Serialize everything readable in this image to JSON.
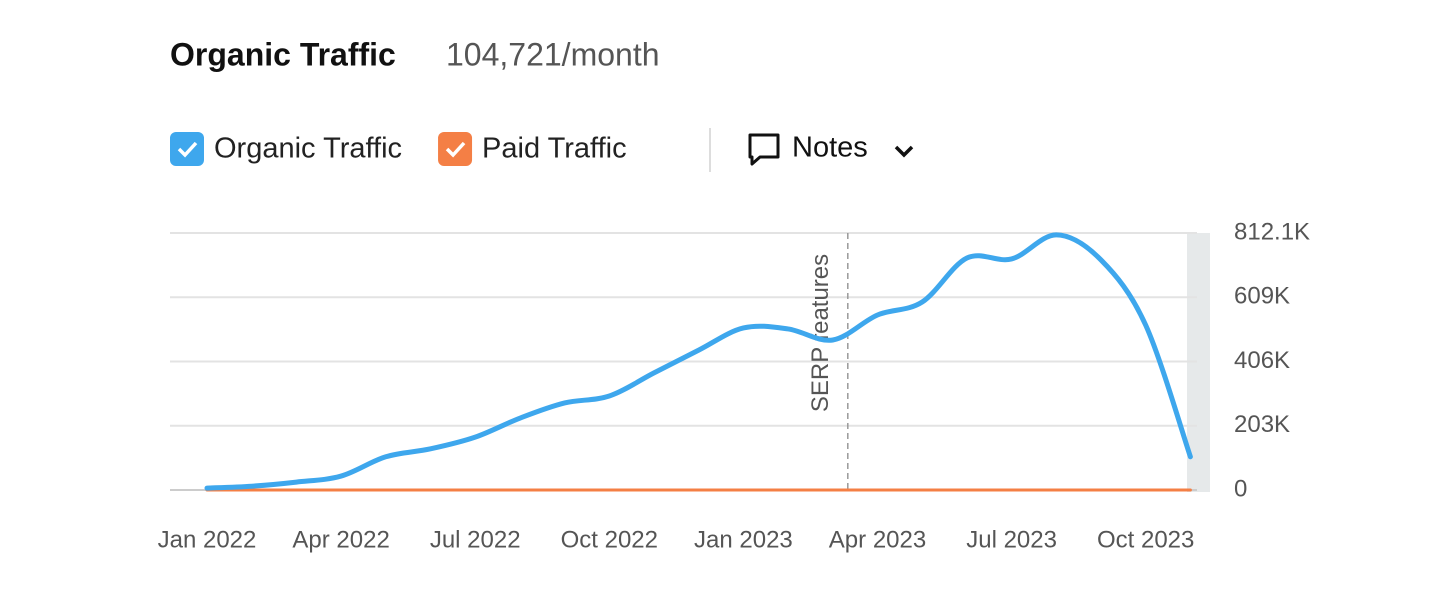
{
  "header": {
    "title": "Organic Traffic",
    "subtitle": "104,721/month"
  },
  "controls": {
    "notes": "Notes"
  },
  "chart_data": {
    "type": "line",
    "x": [
      "Jan 2022",
      "Feb 2022",
      "Mar 2022",
      "Apr 2022",
      "May 2022",
      "Jun 2022",
      "Jul 2022",
      "Aug 2022",
      "Sep 2022",
      "Oct 2022",
      "Nov 2022",
      "Dec 2022",
      "Jan 2023",
      "Feb 2023",
      "Mar 2023",
      "Apr 2023",
      "May 2023",
      "Jun 2023",
      "Jul 2023",
      "Aug 2023",
      "Sep 2023",
      "Oct 2023",
      "Nov 2023"
    ],
    "series": [
      {
        "name": "Organic Traffic",
        "color": "#3ea7ed",
        "values": [
          6,
          12,
          25,
          44,
          105,
          130,
          167,
          227,
          275,
          297,
          370,
          442,
          512,
          509,
          474,
          553,
          594,
          733,
          730,
          806,
          727,
          521,
          105
        ]
      },
      {
        "name": "Paid Traffic",
        "color": "#f47f45",
        "values": [
          0,
          0,
          0,
          0,
          0,
          0,
          0,
          0,
          0,
          0,
          0,
          0,
          0,
          0,
          0,
          0,
          0,
          0,
          0,
          0,
          0,
          0,
          0
        ]
      }
    ],
    "xticks": [
      "Jan 2022",
      "Apr 2022",
      "Jul 2022",
      "Oct 2022",
      "Jan 2023",
      "Apr 2023",
      "Jul 2023",
      "Oct 2023"
    ],
    "ylim": [
      0,
      812.1
    ],
    "yticks": [
      0,
      {
        "value": 203,
        "label": "203K"
      },
      {
        "value": 406,
        "label": "406K"
      },
      {
        "value": 609,
        "label": "609K"
      },
      {
        "value": 812.1,
        "label": "812.1K"
      }
    ],
    "grid": true,
    "annotations": [
      {
        "text": "SERP features",
        "x": "Mar 2023"
      }
    ]
  }
}
